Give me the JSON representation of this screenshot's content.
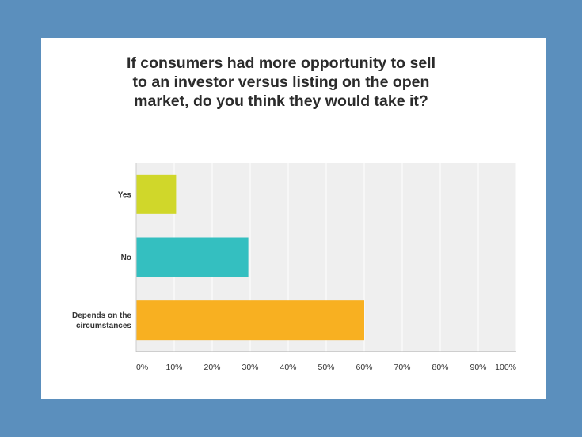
{
  "chart_data": {
    "type": "bar",
    "orientation": "horizontal",
    "title": "If consumers had more opportunity to sell to an investor versus listing on the open market, do you think they would take it?",
    "categories": [
      {
        "lines": [
          "Yes"
        ]
      },
      {
        "lines": [
          "No"
        ]
      },
      {
        "lines": [
          "Depends on the",
          "circumstances"
        ]
      }
    ],
    "values": [
      10.5,
      29.5,
      60
    ],
    "colors": [
      "#d0d72a",
      "#34bfc0",
      "#f8b021"
    ],
    "xlim": [
      0,
      100
    ],
    "ticks": [
      "0%",
      "10%",
      "20%",
      "30%",
      "40%",
      "50%",
      "60%",
      "70%",
      "80%",
      "90%",
      "100%"
    ],
    "grid": true
  }
}
